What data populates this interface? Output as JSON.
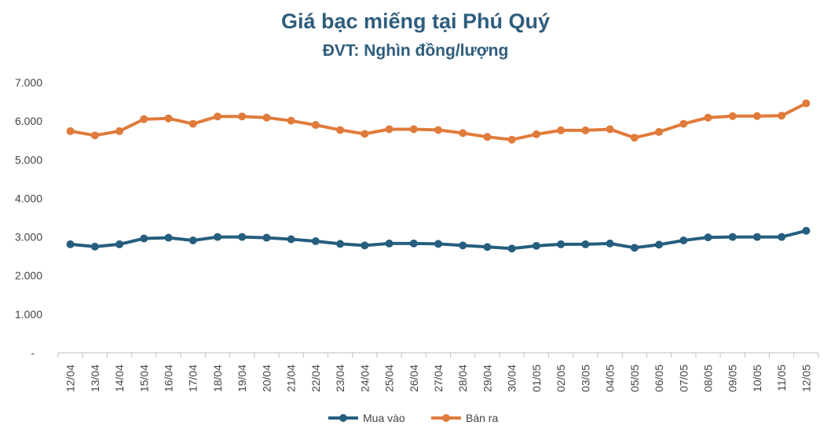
{
  "chart_data": {
    "type": "line",
    "title": "Giá bạc miếng tại Phú Quý",
    "subtitle": "ĐVT: Nghìn đồng/lượng",
    "y_tick_labels": [
      "-",
      "1.000",
      "2.000",
      "3.000",
      "4.000",
      "5.000",
      "6.000",
      "7.000"
    ],
    "ylim": [
      0,
      7000
    ],
    "grid": false,
    "legend_position": "bottom",
    "categories": [
      "12/04",
      "13/04",
      "14/04",
      "15/04",
      "16/04",
      "17/04",
      "18/04",
      "19/04",
      "20/04",
      "21/04",
      "22/04",
      "23/04",
      "24/04",
      "25/04",
      "26/04",
      "27/04",
      "28/04",
      "29/04",
      "30/04",
      "01/05",
      "02/05",
      "03/05",
      "04/05",
      "05/05",
      "06/05",
      "07/05",
      "08/05",
      "09/05",
      "10/05",
      "11/05",
      "12/05"
    ],
    "series": [
      {
        "name": "Mua vào",
        "color": "#255e7e",
        "values": [
          2810,
          2750,
          2810,
          2960,
          2980,
          2910,
          3000,
          3000,
          2980,
          2940,
          2890,
          2820,
          2780,
          2830,
          2830,
          2820,
          2780,
          2740,
          2700,
          2770,
          2810,
          2810,
          2830,
          2720,
          2800,
          2910,
          2990,
          3000,
          3000,
          3000,
          3160
        ]
      },
      {
        "name": "Bán ra",
        "color": "#e07b3b",
        "values": [
          5740,
          5630,
          5740,
          6050,
          6070,
          5930,
          6120,
          6120,
          6090,
          6010,
          5900,
          5770,
          5670,
          5790,
          5790,
          5770,
          5690,
          5590,
          5520,
          5660,
          5760,
          5760,
          5790,
          5570,
          5720,
          5930,
          6090,
          6130,
          6130,
          6140,
          6460
        ]
      }
    ]
  }
}
